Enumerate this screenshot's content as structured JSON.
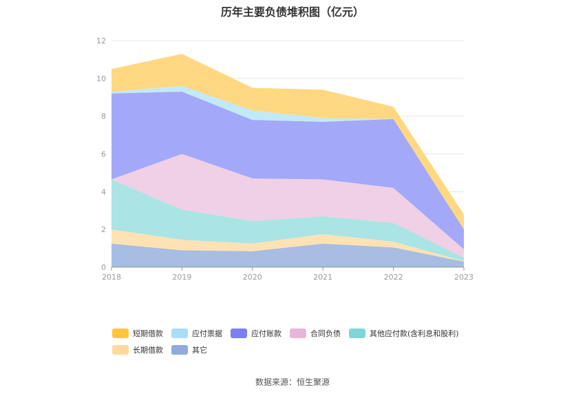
{
  "chart_data": {
    "type": "area",
    "stacked": true,
    "title": "历年主要负债堆积图（亿元）",
    "x": [
      "2018",
      "2019",
      "2020",
      "2021",
      "2022",
      "2023"
    ],
    "ylim": [
      0,
      12
    ],
    "yticks": [
      "0",
      "2",
      "4",
      "6",
      "8",
      "10",
      "12"
    ],
    "grid": true,
    "legend_position": "bottom",
    "series": [
      {
        "name": "其它",
        "values": [
          1.25,
          0.9,
          0.85,
          1.25,
          1.05,
          0.3
        ],
        "color": "#A2B9E2"
      },
      {
        "name": "长期借款",
        "values": [
          0.75,
          0.55,
          0.4,
          0.5,
          0.3,
          0.02
        ],
        "color": "#FFE0B0"
      },
      {
        "name": "其他应付款(含利息和股利)",
        "values": [
          2.65,
          1.6,
          1.2,
          0.95,
          1.0,
          0.18
        ],
        "color": "#A6E3E3"
      },
      {
        "name": "合同负债",
        "values": [
          0.0,
          2.95,
          2.25,
          1.95,
          1.85,
          0.45
        ],
        "color": "#EFCDE5"
      },
      {
        "name": "应付账款",
        "values": [
          4.55,
          3.3,
          3.1,
          3.05,
          3.65,
          1.05
        ],
        "color": "#9FA3F8"
      },
      {
        "name": "应付票据",
        "values": [
          0.1,
          0.3,
          0.5,
          0.2,
          0.0,
          0.0
        ],
        "color": "#BFE8F8"
      },
      {
        "name": "短期借款",
        "values": [
          1.2,
          1.7,
          1.2,
          1.5,
          0.65,
          0.8
        ],
        "color": "#FFD67A"
      }
    ]
  },
  "legend": {
    "row1": [
      {
        "name": "短期借款",
        "color": "#FFC63D"
      },
      {
        "name": "应付票据",
        "color": "#A8DDF7"
      },
      {
        "name": "应付账款",
        "color": "#7C7FF2"
      },
      {
        "name": "合同负债",
        "color": "#E6B6D9"
      },
      {
        "name": "其他应付款(含利息和股利)",
        "color": "#7FD6D6"
      }
    ],
    "row2": [
      {
        "name": "长期借款",
        "color": "#FFD9A0"
      },
      {
        "name": "其它",
        "color": "#8FACDC"
      }
    ]
  },
  "source": "数据来源：恒生聚源"
}
